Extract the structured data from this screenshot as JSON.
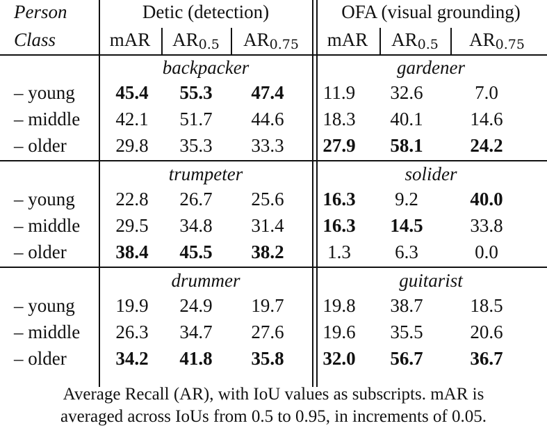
{
  "header": {
    "row_label_line1": "Person",
    "row_label_line2": "Class",
    "groups": [
      {
        "title": "Detic (detection)",
        "cols": [
          {
            "main": "mAR",
            "sub": ""
          },
          {
            "main": "AR",
            "sub": "0.5"
          },
          {
            "main": "AR",
            "sub": "0.75"
          }
        ]
      },
      {
        "title": "OFA (visual grounding)",
        "cols": [
          {
            "main": "mAR",
            "sub": ""
          },
          {
            "main": "AR",
            "sub": "0.5"
          },
          {
            "main": "AR",
            "sub": "0.75"
          }
        ]
      }
    ]
  },
  "row_labels": [
    "– young",
    "– middle",
    "– older"
  ],
  "sections": [
    {
      "detic_class": "backpacker",
      "ofa_class": "gardener",
      "rows": [
        {
          "label": "– young",
          "detic": [
            "45.4",
            "55.3",
            "47.4"
          ],
          "detic_bold": [
            true,
            true,
            true
          ],
          "ofa": [
            "11.9",
            "32.6",
            "7.0"
          ],
          "ofa_bold": [
            false,
            false,
            false
          ]
        },
        {
          "label": "– middle",
          "detic": [
            "42.1",
            "51.7",
            "44.6"
          ],
          "detic_bold": [
            false,
            false,
            false
          ],
          "ofa": [
            "18.3",
            "40.1",
            "14.6"
          ],
          "ofa_bold": [
            false,
            false,
            false
          ]
        },
        {
          "label": "– older",
          "detic": [
            "29.8",
            "35.3",
            "33.3"
          ],
          "detic_bold": [
            false,
            false,
            false
          ],
          "ofa": [
            "27.9",
            "58.1",
            "24.2"
          ],
          "ofa_bold": [
            true,
            true,
            true
          ]
        }
      ]
    },
    {
      "detic_class": "trumpeter",
      "ofa_class": "solider",
      "rows": [
        {
          "label": "– young",
          "detic": [
            "22.8",
            "26.7",
            "25.6"
          ],
          "detic_bold": [
            false,
            false,
            false
          ],
          "ofa": [
            "16.3",
            "9.2",
            "40.0"
          ],
          "ofa_bold": [
            true,
            false,
            true
          ]
        },
        {
          "label": "– middle",
          "detic": [
            "29.5",
            "34.8",
            "31.4"
          ],
          "detic_bold": [
            false,
            false,
            false
          ],
          "ofa": [
            "16.3",
            "14.5",
            "33.8"
          ],
          "ofa_bold": [
            true,
            true,
            false
          ]
        },
        {
          "label": "– older",
          "detic": [
            "38.4",
            "45.5",
            "38.2"
          ],
          "detic_bold": [
            true,
            true,
            true
          ],
          "ofa": [
            "1.3",
            "6.3",
            "0.0"
          ],
          "ofa_bold": [
            false,
            false,
            false
          ]
        }
      ]
    },
    {
      "detic_class": "drummer",
      "ofa_class": "guitarist",
      "rows": [
        {
          "label": "– young",
          "detic": [
            "19.9",
            "24.9",
            "19.7"
          ],
          "detic_bold": [
            false,
            false,
            false
          ],
          "ofa": [
            "19.8",
            "38.7",
            "18.5"
          ],
          "ofa_bold": [
            false,
            false,
            false
          ]
        },
        {
          "label": "– middle",
          "detic": [
            "26.3",
            "34.7",
            "27.6"
          ],
          "detic_bold": [
            false,
            false,
            false
          ],
          "ofa": [
            "19.6",
            "35.5",
            "20.6"
          ],
          "ofa_bold": [
            false,
            false,
            false
          ]
        },
        {
          "label": "– older",
          "detic": [
            "34.2",
            "41.8",
            "35.8"
          ],
          "detic_bold": [
            true,
            true,
            true
          ],
          "ofa": [
            "32.0",
            "56.7",
            "36.7"
          ],
          "ofa_bold": [
            true,
            true,
            true
          ]
        }
      ]
    }
  ],
  "caption": {
    "line1": "Average Recall (AR), with IoU values as subscripts. mAR is",
    "line2": "averaged across IoUs from 0.5 to 0.95, in increments of 0.05."
  }
}
